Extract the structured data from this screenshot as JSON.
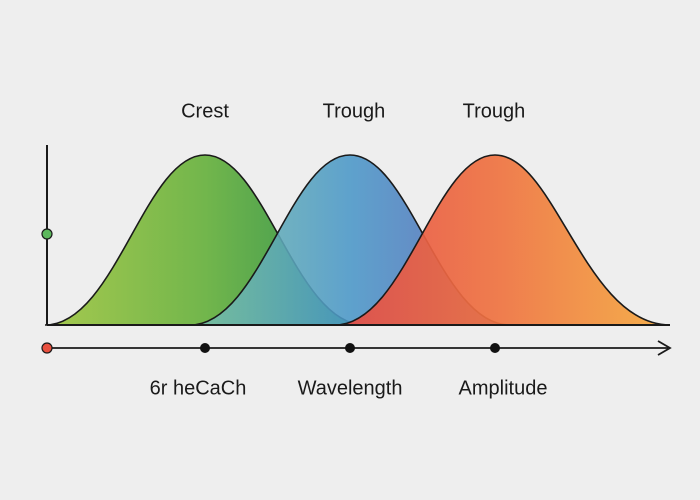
{
  "top_labels": [
    "Crest",
    "Trough",
    "Trough"
  ],
  "bottom_labels": [
    "6r heCaCh",
    "Wavelength",
    "Amplitude"
  ]
}
